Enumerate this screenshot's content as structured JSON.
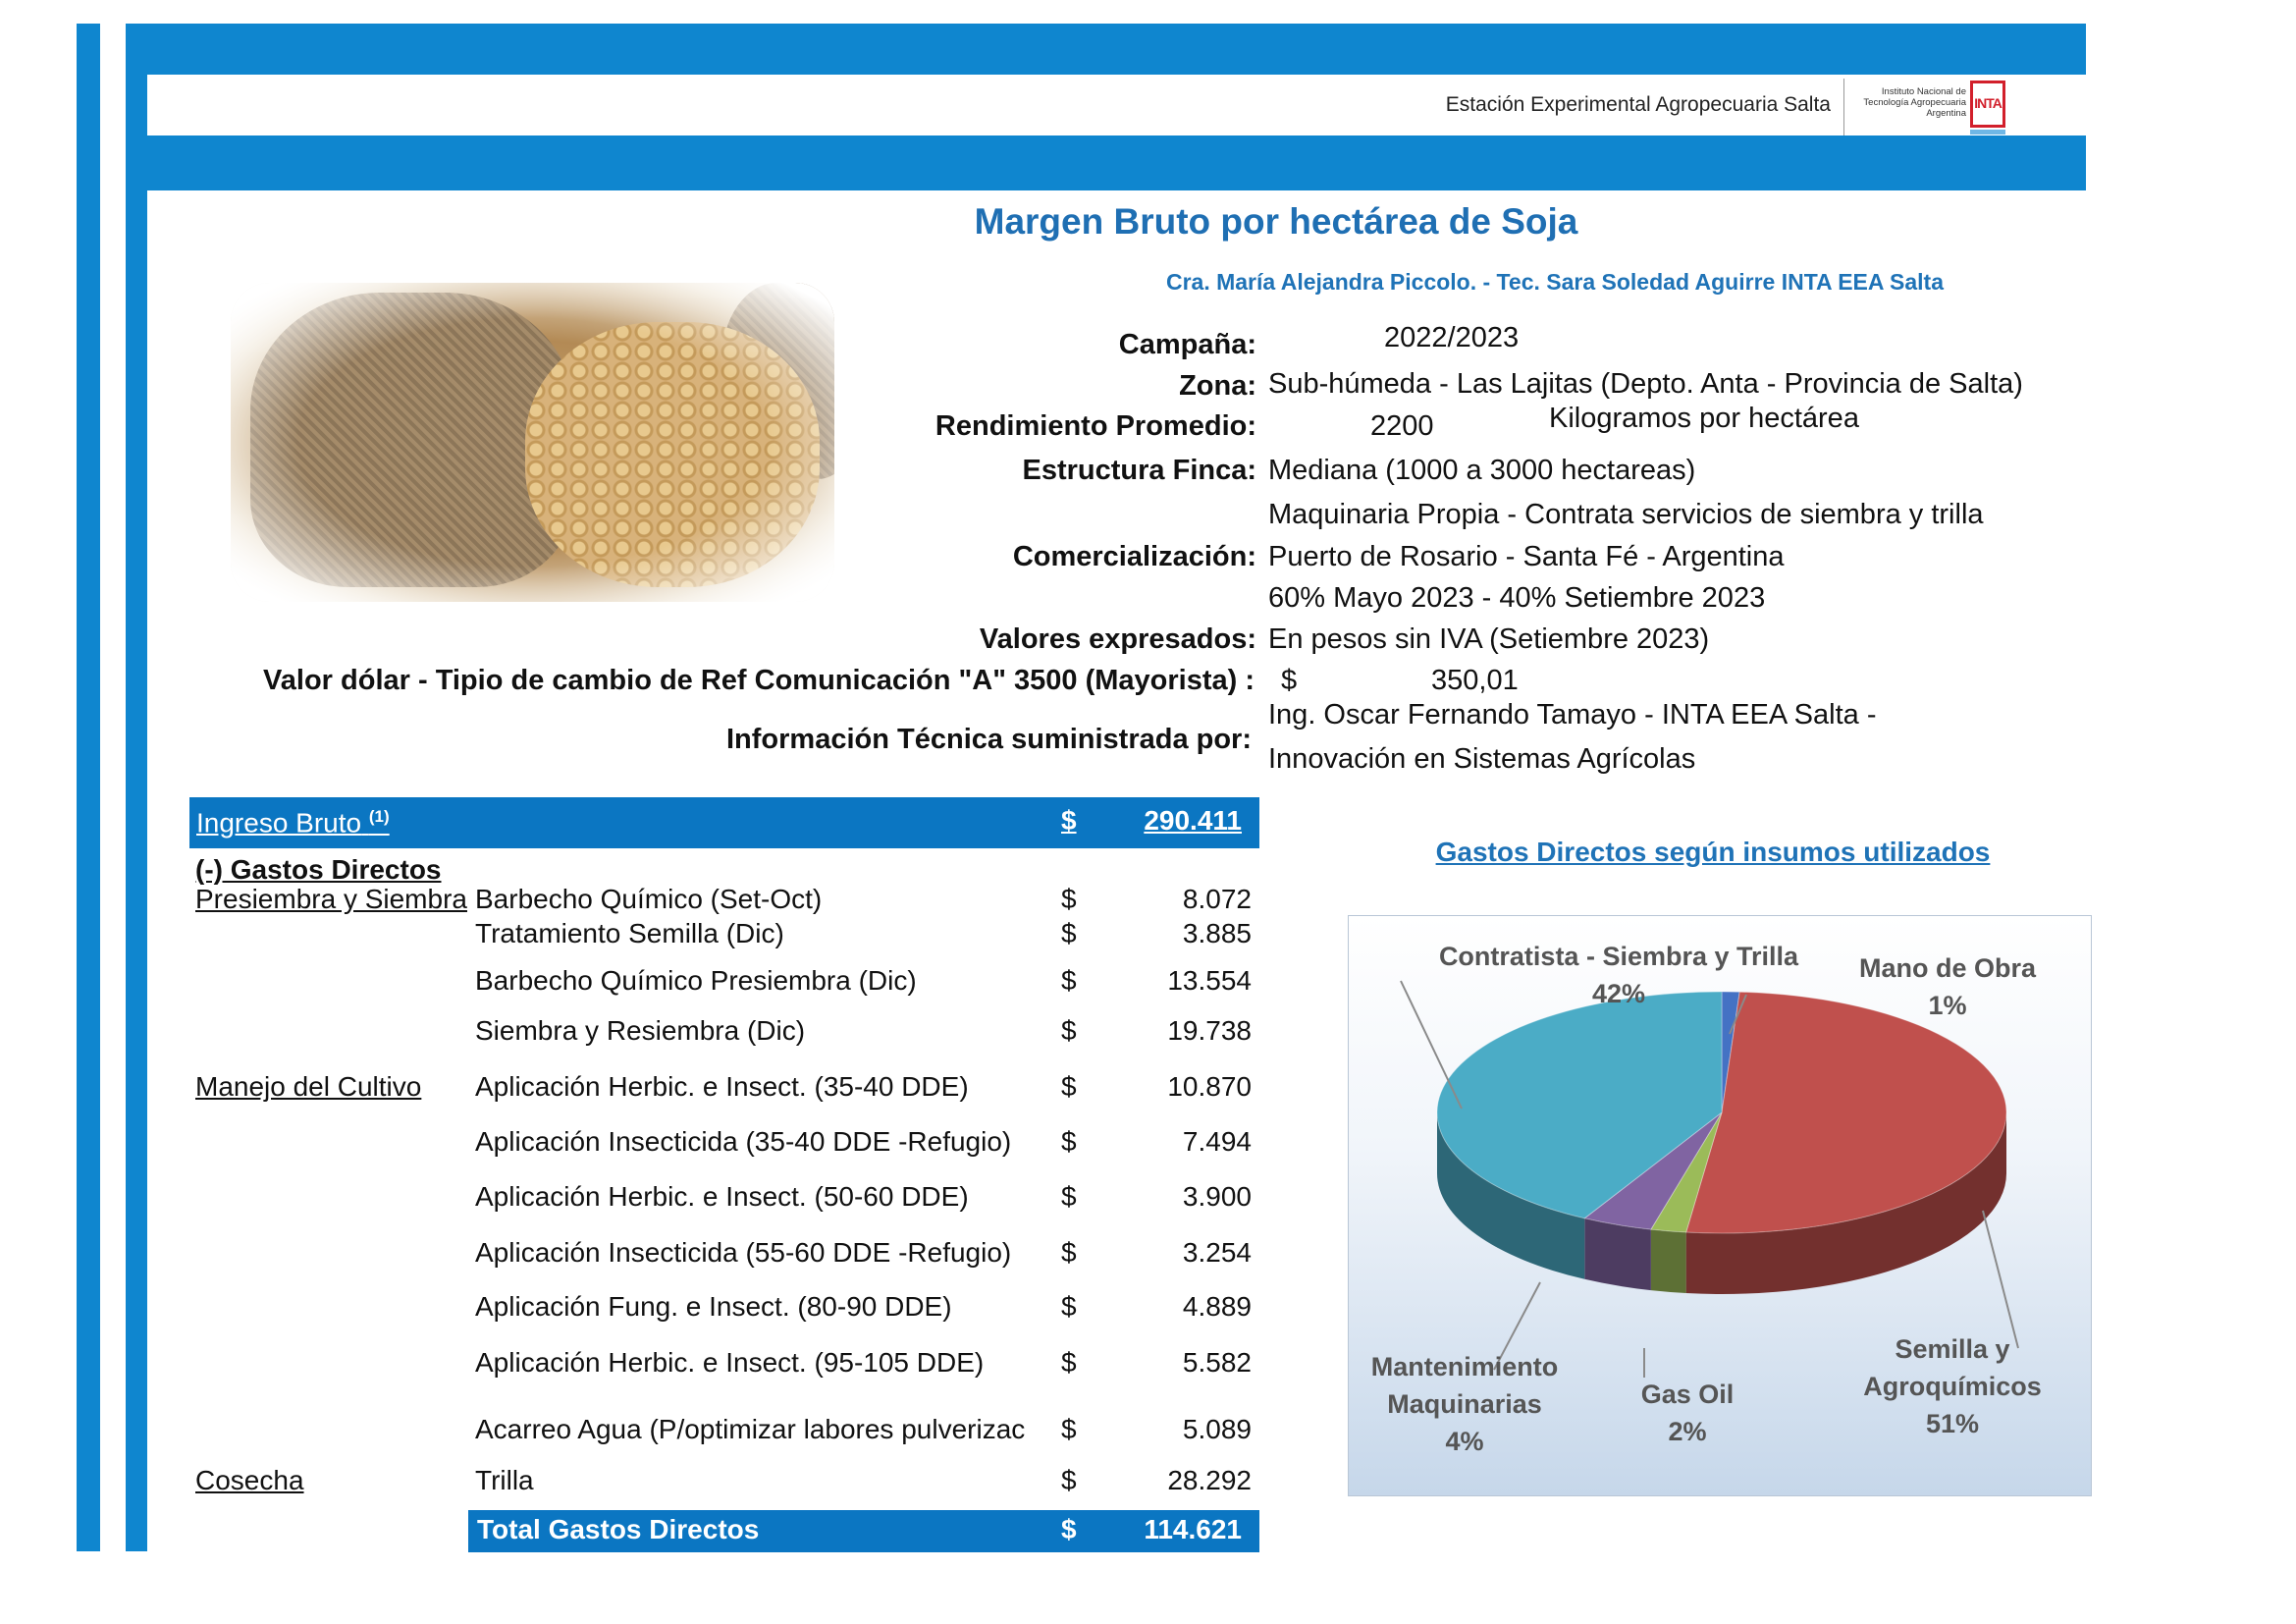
{
  "header": {
    "station": "Estación Experimental Agropecuaria Salta",
    "logo_text_1": "Instituto Nacional de",
    "logo_text_2": "Tecnología Agropecuaria",
    "logo_text_3": "Argentina",
    "logo_mark": "INTA",
    "colors": {
      "frame": "#0f86cf",
      "title": "#1f6fb3",
      "table_band": "#0b76c2"
    }
  },
  "title": "Margen Bruto por hectárea de Soja",
  "authors": "Cra. María Alejandra Piccolo. - Tec. Sara Soledad Aguirre INTA EEA Salta",
  "info": {
    "campana_label": "Campaña:",
    "campana_value": "2022/2023",
    "zona_label": "Zona:",
    "zona_value": "Sub-húmeda - Las Lajitas (Depto. Anta - Provincia de Salta)",
    "rendimiento_label": "Rendimiento Promedio:",
    "rendimiento_value": "2200",
    "rendimiento_unit": "Kilogramos por hectárea",
    "estructura_label": "Estructura Finca:",
    "estructura_value": "Mediana  (1000 a 3000 hectareas)",
    "estructura_value_2": "Maquinaria Propia - Contrata servicios de siembra y trilla",
    "comercializacion_label": "Comercialización:",
    "comercializacion_value": "Puerto de Rosario - Santa Fé - Argentina",
    "comercializacion_value_2": "60% Mayo 2023 - 40% Setiembre 2023",
    "valores_label": "Valores expresados:",
    "valores_value": "En pesos sin IVA (Setiembre 2023)",
    "dolar_label": "Valor dólar - Tipio de cambio de Ref Comunicación \"A\" 3500 (Mayorista)  :",
    "dolar_currency": "$",
    "dolar_value": "350,01",
    "tecnica_label": "Información Técnica suministrada por:",
    "tecnica_value_1": "Ing. Oscar Fernando Tamayo - INTA EEA Salta -",
    "tecnica_value_2": "Innovación en Sistemas Agrícolas"
  },
  "table": {
    "ingreso_label": "Ingreso Bruto",
    "ingreso_note": "(1)",
    "ingreso_currency": "$",
    "ingreso_value": "290.411",
    "gastos_header": "(-) Gastos Directos",
    "rows": [
      {
        "group": "Presiembra y Siembra",
        "item": "Barbecho Químico (Set-Oct)",
        "currency": "$",
        "value": "8.072"
      },
      {
        "group": "",
        "item": "Tratamiento Semilla (Dic)",
        "currency": "$",
        "value": "3.885"
      },
      {
        "group": "",
        "item": "Barbecho Químico Presiembra (Dic)",
        "currency": "$",
        "value": "13.554"
      },
      {
        "group": "",
        "item": "Siembra y Resiembra (Dic)",
        "currency": "$",
        "value": "19.738"
      },
      {
        "group": "Manejo del Cultivo",
        "item": "Aplicación Herbic. e Insect. (35-40 DDE)",
        "currency": "$",
        "value": "10.870"
      },
      {
        "group": "",
        "item": "Aplicación Insecticida (35-40 DDE -Refugio)",
        "currency": "$",
        "value": "7.494"
      },
      {
        "group": "",
        "item": "Aplicación Herbic. e Insect. (50-60 DDE)",
        "currency": "$",
        "value": "3.900"
      },
      {
        "group": "",
        "item": "Aplicación Insecticida (55-60 DDE -Refugio)",
        "currency": "$",
        "value": "3.254"
      },
      {
        "group": "",
        "item": "Aplicación Fung. e Insect. (80-90 DDE)",
        "currency": "$",
        "value": "4.889"
      },
      {
        "group": "",
        "item": "Aplicación Herbic. e Insect. (95-105 DDE)",
        "currency": "$",
        "value": "5.582"
      },
      {
        "group": "",
        "item": "Acarreo Agua (P/optimizar labores pulverizac",
        "currency": "$",
        "value": "5.089"
      },
      {
        "group": "Cosecha",
        "item": "Trilla",
        "currency": "$",
        "value": "28.292"
      }
    ],
    "total_label": "Total Gastos Directos",
    "total_currency": "$",
    "total_value": "114.621"
  },
  "chart_data": {
    "type": "pie",
    "title": "Gastos Directos según insumos utilizados",
    "three_d": true,
    "slices": [
      {
        "name": "Mano de Obra",
        "label": "1%",
        "value": 1,
        "color": "#4472c4"
      },
      {
        "name": "Semilla y Agroquímicos",
        "label": "51%",
        "value": 51,
        "color": "#c0504d"
      },
      {
        "name": "Gas Oil",
        "label": "2%",
        "value": 2,
        "color": "#9bbb59"
      },
      {
        "name": "Mantenimiento Maquinarias",
        "label": "4%",
        "value": 4,
        "color": "#8064a2"
      },
      {
        "name": "Contratista - Siembra y Trilla",
        "label": "42%",
        "value": 42,
        "color": "#4bacc6"
      }
    ],
    "labels": {
      "contratista": "Contratista - Siembra y Trilla",
      "contratista_pct": "42%",
      "mano": "Mano de Obra",
      "mano_pct": "1%",
      "mant_1": "Mantenimiento",
      "mant_2": "Maquinarias",
      "mant_pct": "4%",
      "gasoil": "Gas Oil",
      "gasoil_pct": "2%",
      "semilla_1": "Semilla y",
      "semilla_2": "Agroquímicos",
      "semilla_pct": "51%"
    }
  }
}
